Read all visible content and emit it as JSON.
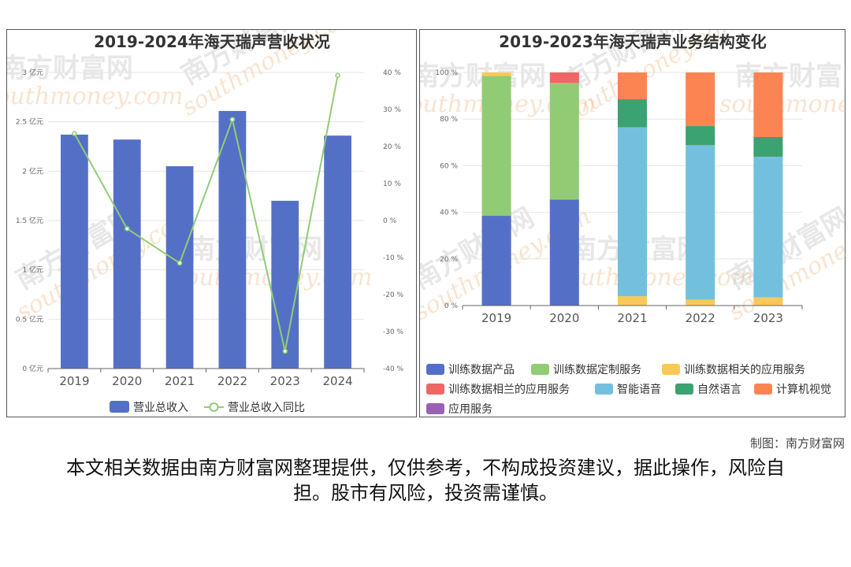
{
  "watermark": {
    "cn": "南方财富网",
    "en": "southmoney.com"
  },
  "chart_data": [
    {
      "type": "bar",
      "title": "2019-2024年海天瑞声营收状况",
      "categories": [
        "2019",
        "2020",
        "2021",
        "2022",
        "2023",
        "2024"
      ],
      "series": [
        {
          "name": "营业总收入",
          "type": "bar",
          "unit": "亿元",
          "color": "#5470c6",
          "values": [
            2.37,
            2.32,
            2.05,
            2.61,
            1.7,
            2.36
          ]
        },
        {
          "name": "营业总收入同比",
          "type": "line",
          "unit": "%",
          "color": "#91cc75",
          "values": [
            23.5,
            -2.2,
            -11.5,
            27.3,
            -35.3,
            39.2
          ]
        }
      ],
      "y_left": {
        "ticks": [
          "0 亿元",
          "0.5 亿元",
          "1 亿元",
          "1.5 亿元",
          "2 亿元",
          "2.5 亿元",
          "3 亿元"
        ],
        "ylim": [
          0,
          3
        ]
      },
      "y_right": {
        "ticks": [
          "-40 %",
          "-30 %",
          "-20 %",
          "-10 %",
          "0 %",
          "10 %",
          "20 %",
          "30 %",
          "40 %"
        ],
        "ylim": [
          -40,
          40
        ]
      },
      "legend": {
        "placement": "bottom"
      }
    },
    {
      "type": "bar",
      "stacked": true,
      "title": "2019-2023年海天瑞声业务结构变化",
      "categories": [
        "2019",
        "2020",
        "2021",
        "2022",
        "2023"
      ],
      "y_ticks": [
        "0 %",
        "20 %",
        "40 %",
        "60 %",
        "80 %",
        "100 %"
      ],
      "ylim": [
        0,
        100
      ],
      "series": [
        {
          "name": "训练数据产品",
          "color": "#5470c6",
          "values": [
            38.5,
            45.5,
            0,
            0,
            0
          ]
        },
        {
          "name": "训练数据定制服务",
          "color": "#91cc75",
          "values": [
            60.0,
            50.0,
            0,
            0,
            0
          ]
        },
        {
          "name": "训练数据相关的应用服务",
          "color": "#fac858",
          "values": [
            1.5,
            0,
            4.0,
            2.5,
            3.5
          ]
        },
        {
          "name": "训练数据相兰的应用服务",
          "color": "#ee6666",
          "values": [
            0,
            4.5,
            0,
            0,
            0
          ]
        },
        {
          "name": "智能语音",
          "color": "#73c0de",
          "values": [
            0,
            0,
            72.5,
            66.3,
            60.3
          ]
        },
        {
          "name": "自然语言",
          "color": "#3ba272",
          "values": [
            0,
            0,
            12.0,
            8.2,
            8.5
          ]
        },
        {
          "name": "计算机视觉",
          "color": "#fc8452",
          "values": [
            0,
            0,
            11.5,
            23.0,
            27.7
          ]
        },
        {
          "name": "应用服务",
          "color": "#9a60b4",
          "values": [
            0,
            0,
            0,
            0,
            0
          ]
        }
      ],
      "legend": {
        "placement": "bottom"
      }
    }
  ],
  "footer": {
    "credit": "制图：南方财富网",
    "disclaimer": "本文相关数据由南方财富网整理提供，仅供参考，不构成投资建议，据此操作，风险自担。股市有风险，投资需谨慎。"
  }
}
